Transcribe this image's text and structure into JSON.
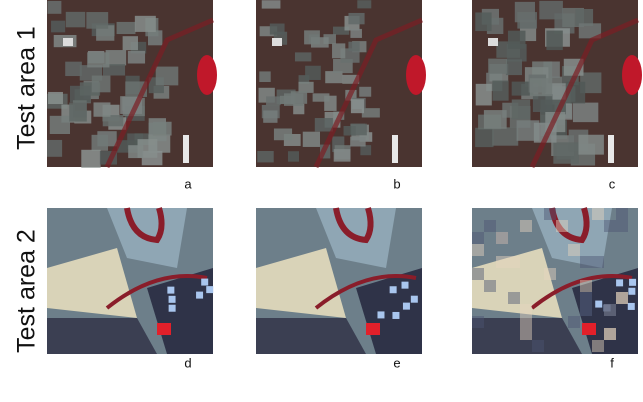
{
  "rows": [
    {
      "label": "Test area 1",
      "panels": [
        "a",
        "b",
        "c"
      ]
    },
    {
      "label": "Test area 2",
      "panels": [
        "d",
        "e",
        "f"
      ]
    }
  ]
}
